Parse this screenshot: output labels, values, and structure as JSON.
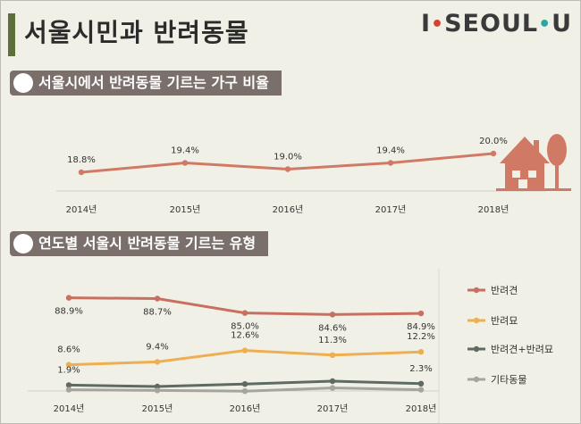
{
  "page": {
    "title": "서울시민과 반려동물",
    "brand": {
      "left": "I",
      "word": "SEOUL",
      "right": "U"
    }
  },
  "sections": [
    {
      "heading": "서울시에서 반려동물 기르는 가구 비율"
    },
    {
      "heading": "연도별 서울시 반려동물 기르는 유형"
    }
  ],
  "chart_data": [
    {
      "type": "line",
      "categories": [
        "2014년",
        "2015년",
        "2016년",
        "2017년",
        "2018년"
      ],
      "series": [
        {
          "name": "",
          "values": [
            18.8,
            19.4,
            19.0,
            19.4,
            20.0
          ],
          "labels": [
            "18.8%",
            "19.4%",
            "19.0%",
            "19.4%",
            "20.0%"
          ]
        }
      ],
      "colors": [
        "#d07a66"
      ],
      "grid": false,
      "legend": "none",
      "icon": "house-and-tree-icon"
    },
    {
      "type": "line",
      "categories": [
        "2014년",
        "2015년",
        "2016년",
        "2017년",
        "2018년"
      ],
      "series": [
        {
          "name": "반려견",
          "values": [
            88.9,
            88.7,
            85.0,
            84.6,
            84.9
          ],
          "labels": [
            "88.9%",
            "88.7%",
            "85.0%",
            "84.6%",
            "84.9%"
          ]
        },
        {
          "name": "반려묘",
          "values": [
            8.6,
            9.4,
            12.6,
            11.3,
            12.2
          ],
          "labels": [
            "8.6%",
            "9.4%",
            "12.6%",
            "11.3%",
            "12.2%"
          ]
        },
        {
          "name": "반려견+반려묘",
          "values": [
            1.9,
            1.5,
            2.2,
            3.0,
            2.3
          ],
          "labels": [
            "1.9%",
            "",
            "",
            "",
            "2.3%"
          ]
        },
        {
          "name": "기타동물",
          "values": [
            0.6,
            0.4,
            0.2,
            1.1,
            0.6
          ],
          "labels": [
            "",
            "",
            "",
            "",
            ""
          ]
        }
      ],
      "colors": [
        "#c8705f",
        "#eeae52",
        "#5d6b62",
        "#a5a59f"
      ],
      "grid": false,
      "legend": "right"
    }
  ]
}
